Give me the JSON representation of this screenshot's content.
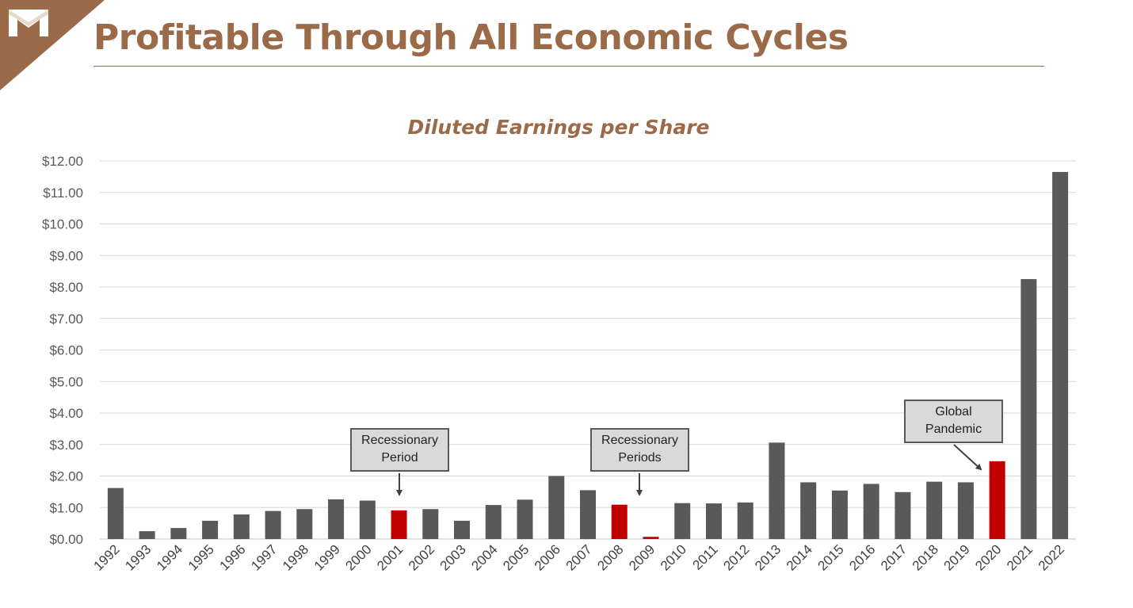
{
  "title": "Profitable Through All Economic Cycles",
  "logo_icon": "m-logo-icon",
  "colors": {
    "brand": "#9a6a49",
    "bar_default": "#595959",
    "bar_highlight": "#c00000",
    "grid": "#d9d9d9"
  },
  "chart_data": {
    "type": "bar",
    "title": "Diluted Earnings per Share",
    "xlabel": "",
    "ylabel": "",
    "ylim": [
      0,
      12
    ],
    "grid": true,
    "y_ticks": [
      "$0.00",
      "$1.00",
      "$2.00",
      "$3.00",
      "$4.00",
      "$5.00",
      "$6.00",
      "$7.00",
      "$8.00",
      "$9.00",
      "$10.00",
      "$11.00",
      "$12.00"
    ],
    "categories": [
      "1992",
      "1993",
      "1994",
      "1995",
      "1996",
      "1997",
      "1998",
      "1999",
      "2000",
      "2001",
      "2002",
      "2003",
      "2004",
      "2005",
      "2006",
      "2007",
      "2008",
      "2009",
      "2010",
      "2011",
      "2012",
      "2013",
      "2014",
      "2015",
      "2016",
      "2017",
      "2018",
      "2019",
      "2020",
      "2021",
      "2022"
    ],
    "values": [
      1.62,
      0.25,
      0.35,
      0.58,
      0.78,
      0.89,
      0.95,
      1.26,
      1.22,
      0.91,
      0.95,
      0.58,
      1.08,
      1.25,
      2.0,
      1.55,
      1.09,
      0.07,
      1.14,
      1.13,
      1.16,
      3.06,
      1.8,
      1.54,
      1.75,
      1.49,
      1.82,
      1.8,
      2.47,
      8.25,
      11.65
    ],
    "highlighted": [
      "2001",
      "2008",
      "2009",
      "2020"
    ],
    "annotations": [
      {
        "lines": [
          "Recessionary",
          "Period"
        ],
        "target": "2001"
      },
      {
        "lines": [
          "Recessionary",
          "Periods"
        ],
        "target": "2009"
      },
      {
        "lines": [
          "Global",
          "Pandemic"
        ],
        "target": "2020"
      }
    ]
  }
}
